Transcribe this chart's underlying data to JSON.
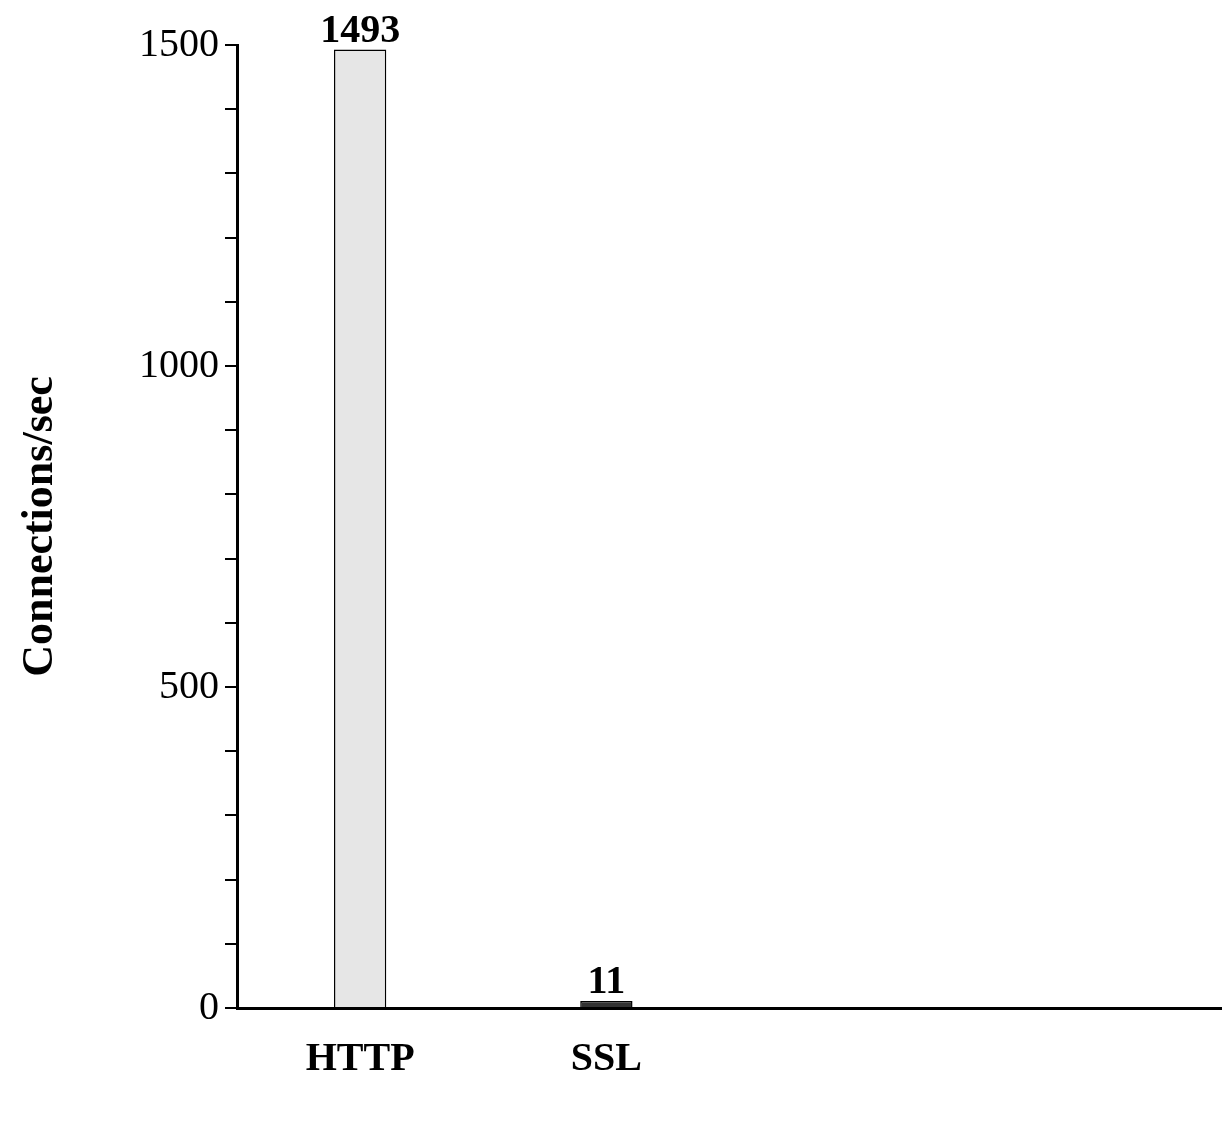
{
  "chart_data": {
    "type": "bar",
    "ylabel": "Connections/sec",
    "categories": [
      "HTTP",
      "SSL",
      null,
      null
    ],
    "values": [
      1493,
      11,
      null,
      null
    ],
    "colors": [
      "#e6e6e6",
      "#333333",
      null,
      null
    ],
    "ylim": [
      0,
      1500
    ],
    "yticks": [
      0,
      {
        "value": 100,
        "label": null
      },
      {
        "value": 200,
        "label": null
      },
      {
        "value": 300,
        "label": null
      },
      {
        "value": 400,
        "label": null
      },
      500,
      {
        "value": 600,
        "label": null
      },
      {
        "value": 700,
        "label": null
      },
      {
        "value": 800,
        "label": null
      },
      {
        "value": 900,
        "label": null
      },
      1000,
      {
        "value": 1100,
        "label": null
      },
      {
        "value": 1200,
        "label": null
      },
      {
        "value": 1300,
        "label": null
      },
      {
        "value": 1400,
        "label": null
      },
      1500
    ],
    "grid": false,
    "legend": false,
    "data_labels": true
  }
}
